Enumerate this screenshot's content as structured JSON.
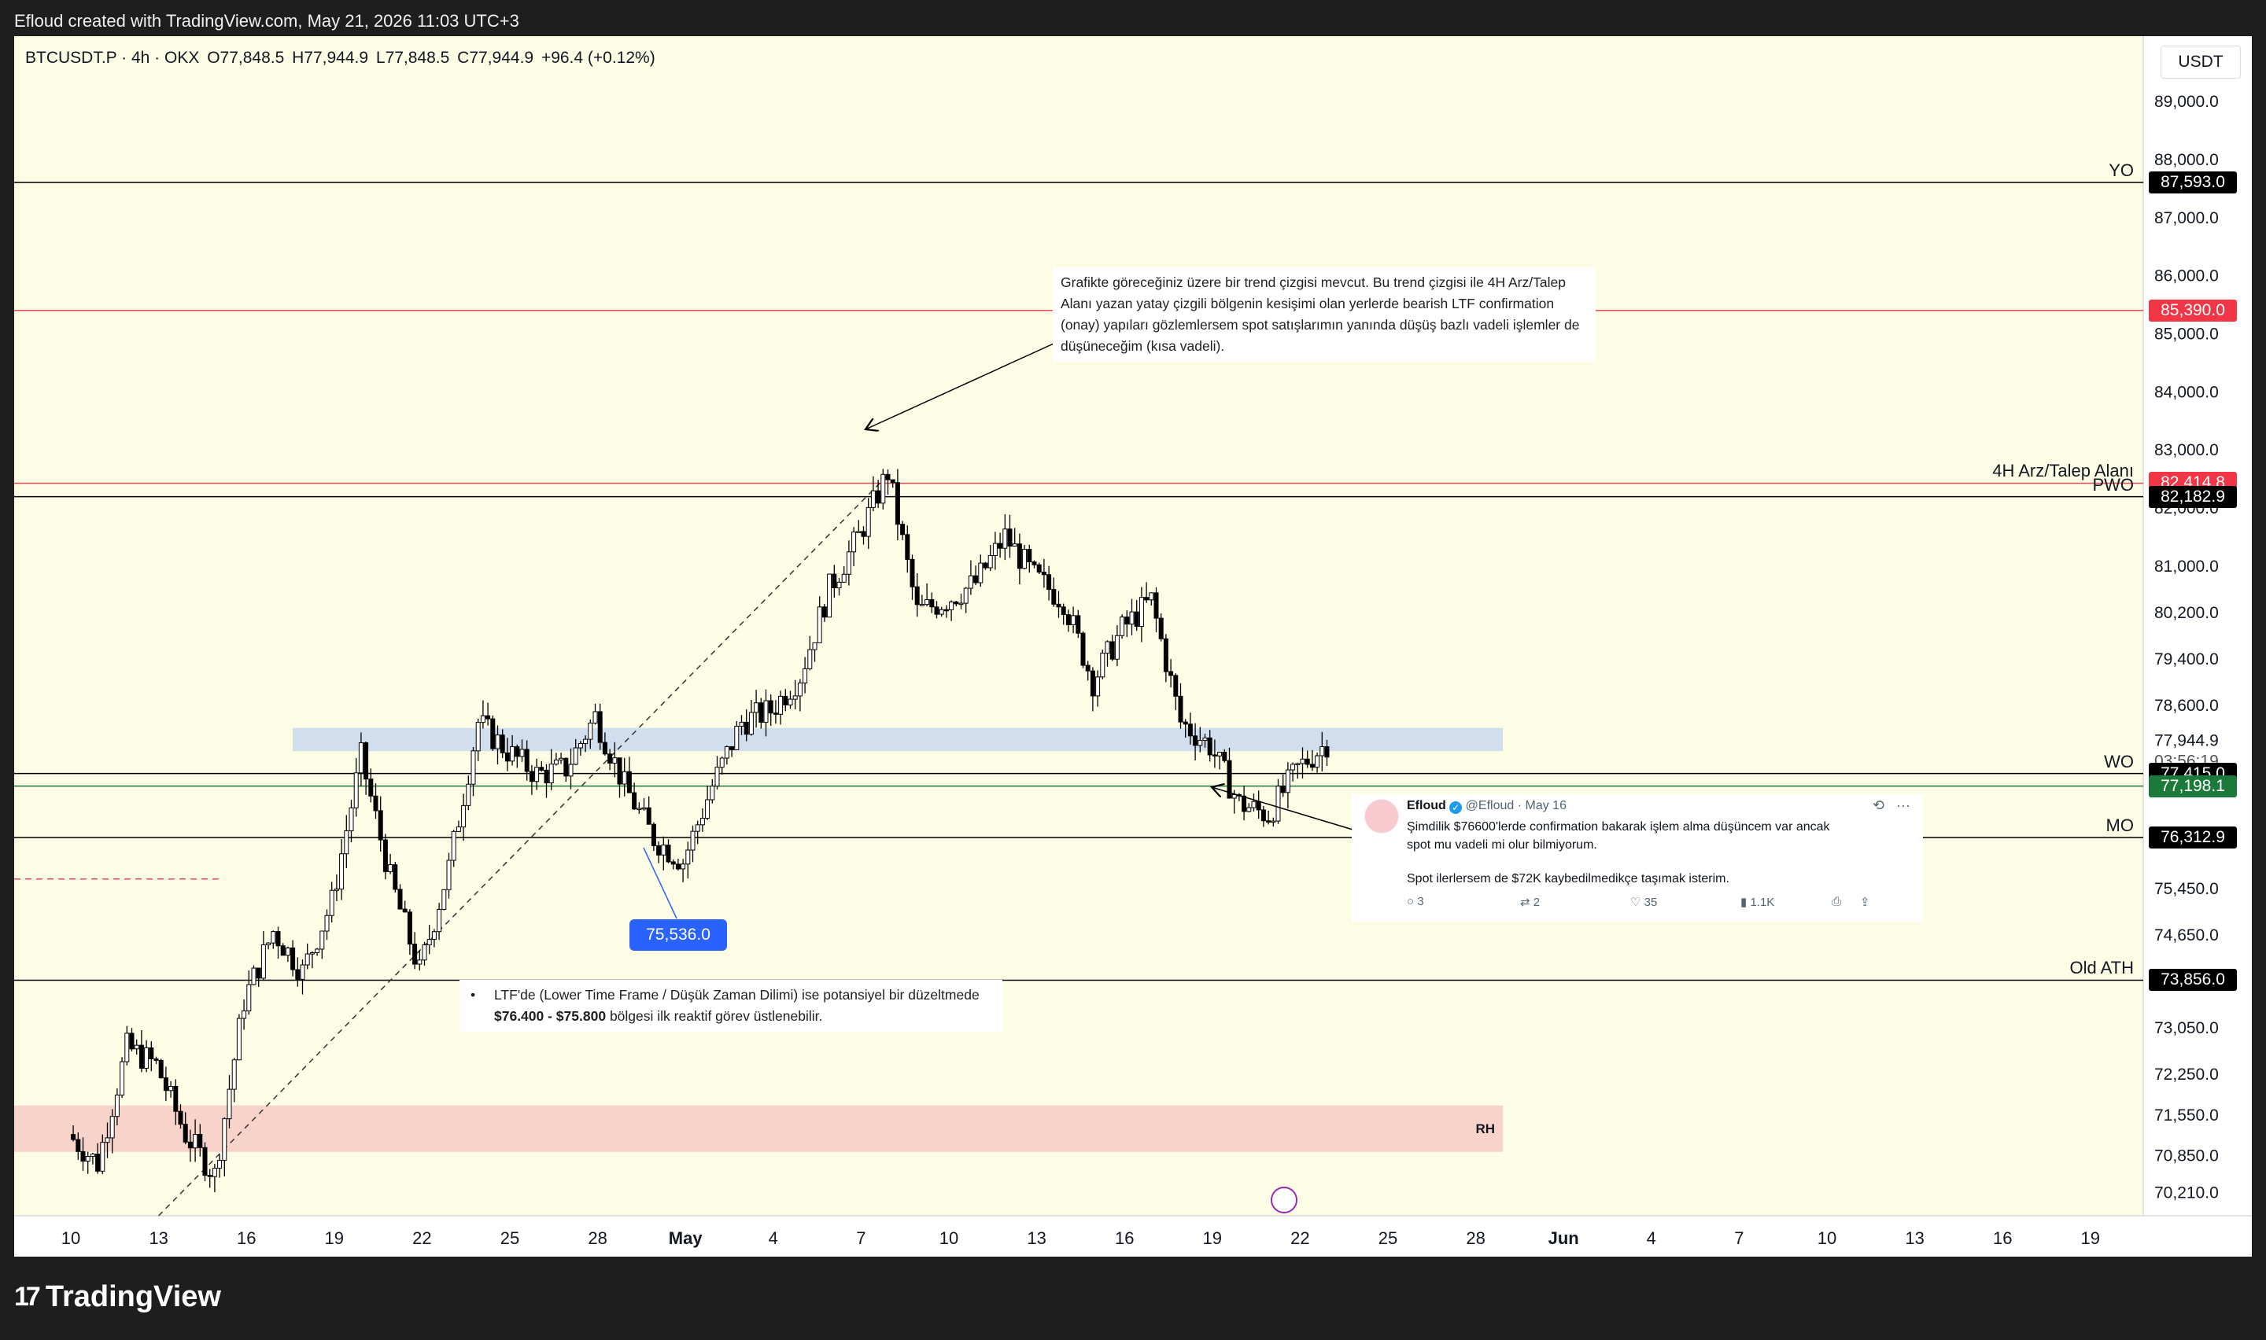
{
  "header": {
    "caption": "Efloud created with TradingView.com, May 21, 2026 11:03 UTC+3"
  },
  "symbol_bar": {
    "symbol": "BTCUSDT.P · 4h · OKX",
    "open": "O77,848.5",
    "high": "H77,944.9",
    "low": "L77,848.5",
    "close": "C77,944.9",
    "change": "+96.4 (+0.12%)"
  },
  "price_scale": {
    "currency": "USDT",
    "ticks": [
      "89,000.0",
      "88,000.0",
      "87,000.0",
      "86,000.0",
      "85,000.0",
      "84,000.0",
      "83,000.0",
      "82,000.0",
      "81,000.0",
      "80,200.0",
      "79,400.0",
      "78,600.0",
      "75,450.0",
      "74,650.0",
      "73,050.0",
      "72,250.0",
      "71,550.0",
      "70,850.0",
      "70,210.0"
    ],
    "current_price": "77,944.9",
    "countdown": "03:56:19"
  },
  "levels": [
    {
      "name": "YO",
      "price": 87593.0,
      "tag": "87,593.0",
      "color": "#000000",
      "tag_bg": "#000000",
      "tag_fg": "#ffffff"
    },
    {
      "name": "",
      "price": 85390.0,
      "tag": "85,390.0",
      "color": "#e84b5b",
      "tag_bg": "#f23645",
      "tag_fg": "#ffffff"
    },
    {
      "name": "4H Arz/Talep Alanı",
      "price": 82414.8,
      "tag": "82,414.8",
      "color": "#e84b5b",
      "tag_bg": "#f23645",
      "tag_fg": "#ffffff"
    },
    {
      "name": "PWO",
      "price": 82182.9,
      "tag": "82,182.9",
      "color": "#000000",
      "tag_bg": "#000000",
      "tag_fg": "#ffffff"
    },
    {
      "name": "WO",
      "price": 77415.0,
      "tag": "77,415.0",
      "color": "#000000",
      "tag_bg": "#000000",
      "tag_fg": "#ffffff"
    },
    {
      "name": "",
      "price": 77198.1,
      "tag": "77,198.1",
      "color": "#1b7a3a",
      "tag_bg": "#1b7a3a",
      "tag_fg": "#ffffff"
    },
    {
      "name": "MO",
      "price": 76312.9,
      "tag": "76,312.9",
      "color": "#000000",
      "tag_bg": "#000000",
      "tag_fg": "#ffffff"
    },
    {
      "name": "Old ATH",
      "price": 73856.0,
      "tag": "73,856.0",
      "color": "#000000",
      "tag_bg": "#000000",
      "tag_fg": "#ffffff"
    }
  ],
  "zones": [
    {
      "name": "supply-demand-zone",
      "label": "",
      "from": 77800,
      "to": 78200,
      "color": "#c8d8ee"
    },
    {
      "name": "rh-zone",
      "label": "RH",
      "from": 70900,
      "to": 71700,
      "color": "#f7cbc4"
    }
  ],
  "annotations": {
    "top_note": "Grafikte göreceğiniz üzere bir trend çizgisi mevcut. Bu trend çizgisi ile 4H Arz/Talep Alanı yazan yatay çizgili bölgenin kesişimi olan yerlerde bearish LTF confirmation (onay) yapıları gözlemlersem spot satışlarımın yanında düşüş bazlı vadeli işlemler de düşüneceğim (kısa vadeli).",
    "low_badge": "75,536.0",
    "bullet_note_prefix": "LTF'de (Lower Time Frame / Düşük Zaman Dilimi) ise potansiyel bir düzeltmede ",
    "bullet_note_bold": "$76.400 - $75.800",
    "bullet_note_suffix": " bölgesi ilk reaktif görev üstlenebilir."
  },
  "tweet": {
    "name": "Efloud",
    "handle": "@Efloud · May 16",
    "text_line1": "Şimdilik $76600'lerde confirmation bakarak işlem alma düşüncem var ancak",
    "text_line2": "spot mu vadeli mi olur bilmiyorum.",
    "text_line3": "Spot ilerlersem de $72K kaybedilmedikçe taşımak isterim.",
    "replies": "3",
    "reposts": "2",
    "likes": "35",
    "views": "1.1K"
  },
  "time_axis": {
    "labels": [
      "10",
      "13",
      "16",
      "19",
      "22",
      "25",
      "28",
      "May",
      "4",
      "7",
      "10",
      "13",
      "16",
      "19",
      "22",
      "25",
      "28",
      "Jun",
      "4",
      "7",
      "10",
      "13",
      "16",
      "19"
    ]
  },
  "footer": {
    "brand": "TradingView"
  },
  "chart_data": {
    "type": "candlestick",
    "symbol": "BTCUSDT.P",
    "interval": "4h",
    "x_range": [
      "Apr 8",
      "Jun 19"
    ],
    "ylim": [
      69800,
      89300
    ],
    "anchors": [
      [
        "Apr 8",
        71200
      ],
      [
        "Apr 9",
        70700
      ],
      [
        "Apr 10",
        72700
      ],
      [
        "Apr 11",
        72400
      ],
      [
        "Apr 12",
        71200
      ],
      [
        "Apr 13",
        70500
      ],
      [
        "Apr 14",
        73500
      ],
      [
        "Apr 15",
        74700
      ],
      [
        "Apr 16",
        74000
      ],
      [
        "Apr 17",
        75200
      ],
      [
        "Apr 18",
        77700
      ],
      [
        "Apr 19",
        75600
      ],
      [
        "Apr 20",
        74000
      ],
      [
        "Apr 21",
        75800
      ],
      [
        "Apr 22",
        78300
      ],
      [
        "Apr 23",
        77800
      ],
      [
        "Apr 24",
        77400
      ],
      [
        "Apr 25",
        77500
      ],
      [
        "Apr 26",
        78400
      ],
      [
        "Apr 27",
        77200
      ],
      [
        "Apr 28",
        76300
      ],
      [
        "Apr 29",
        75900
      ],
      [
        "Apr 30",
        77200
      ],
      [
        "May 1",
        78300
      ],
      [
        "May 2",
        78500
      ],
      [
        "May 3",
        79100
      ],
      [
        "May 4",
        80600
      ],
      [
        "May 5",
        81500
      ],
      [
        "May 6",
        82600
      ],
      [
        "May 7",
        80200
      ],
      [
        "May 8",
        80400
      ],
      [
        "May 9",
        80700
      ],
      [
        "May 10",
        81500
      ],
      [
        "May 11",
        80800
      ],
      [
        "May 12",
        80400
      ],
      [
        "May 13",
        79000
      ],
      [
        "May 14",
        79900
      ],
      [
        "May 15",
        80400
      ],
      [
        "May 16",
        78300
      ],
      [
        "May 17",
        77900
      ],
      [
        "May 18",
        76900
      ],
      [
        "May 19",
        76700
      ],
      [
        "May 20",
        77500
      ],
      [
        "May 21",
        77944.9
      ]
    ],
    "trendline": [
      [
        "Apr 11",
        69800
      ],
      [
        "May 6",
        82600
      ]
    ]
  }
}
